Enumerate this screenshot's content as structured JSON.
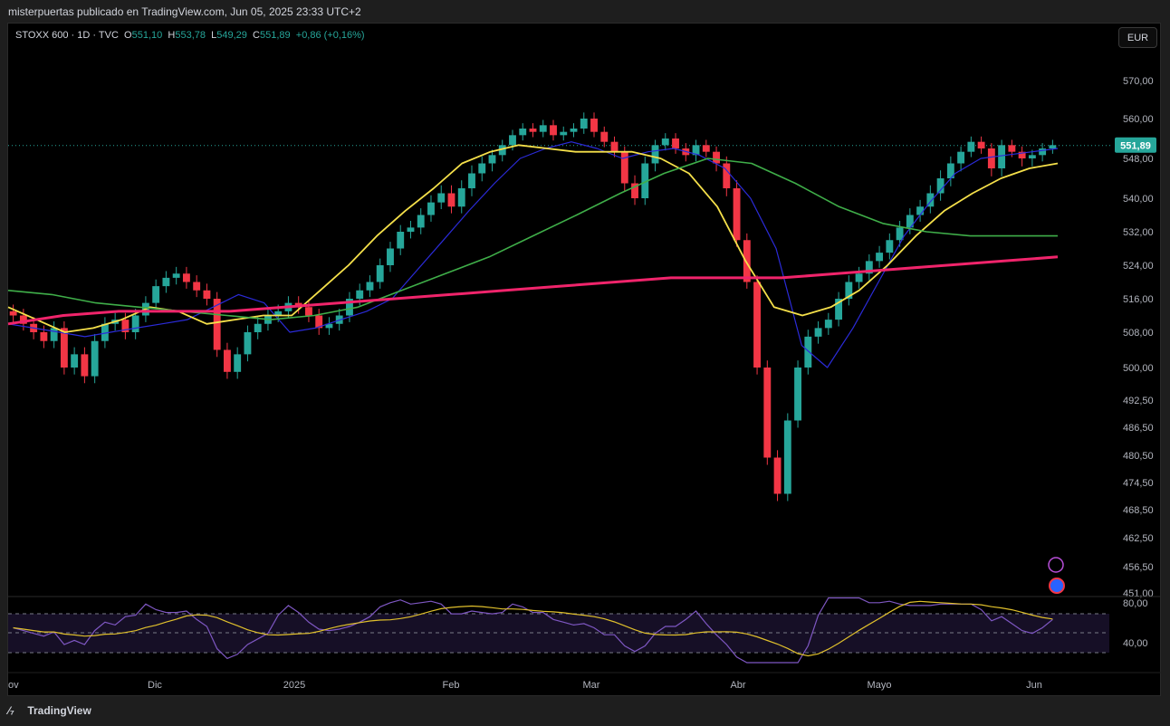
{
  "header": {
    "publish_line": "misterpuertas publicado en TradingView.com, Jun 05, 2025 23:33 UTC+2"
  },
  "legend": {
    "symbol": "STOXX 600 · 1D · TVC",
    "open_label": "O",
    "open": "551,10",
    "high_label": "H",
    "high": "553,78",
    "low_label": "L",
    "low": "549,29",
    "close_label": "C",
    "close": "551,89",
    "change": "+0,86 (+0,16%)"
  },
  "currency_button": "EUR",
  "price_tag": "551,89",
  "footer": {
    "brand": "TradingView"
  },
  "colors": {
    "up": "#26a69a",
    "down": "#f23645",
    "ma_fast": "#2b2bd9",
    "ma_mid": "#f5e04a",
    "ma_slow": "#3fae49",
    "ma_long": "#f0246b",
    "rsi": "#7e57c2",
    "rsi_ma": "#e0c02c"
  },
  "chart_data": {
    "type": "candlestick",
    "x_axis_labels": [
      "ov",
      "Dic",
      "2025",
      "Feb",
      "Mar",
      "Abr",
      "Mayo",
      "Jun"
    ],
    "y_axis_labels": [
      "570,00",
      "560,00",
      "548,00",
      "540,00",
      "532,00",
      "524,00",
      "516,00",
      "508,00",
      "500,00",
      "492,50",
      "486,50",
      "480,50",
      "474,50",
      "468,50",
      "462,50",
      "456,50",
      "451,00"
    ],
    "rsi_axis_labels": [
      "80,00",
      "40,00"
    ],
    "last_close": 551.89,
    "series": [
      {
        "name": "Candles",
        "ohlc_closes": [
          512,
          510,
          508,
          506,
          509,
          500,
          503,
          498,
          506,
          510,
          511,
          508,
          512,
          515,
          519,
          521,
          522,
          520,
          518,
          516,
          504,
          499,
          503,
          508,
          510,
          512,
          513,
          515,
          514,
          512,
          509,
          510,
          512,
          516,
          518,
          520,
          524,
          528,
          532,
          533,
          536,
          539,
          541,
          538,
          542,
          545,
          547,
          549,
          552,
          555,
          557,
          556,
          558,
          555,
          556,
          557,
          560,
          556,
          553,
          550,
          543,
          540,
          547,
          552,
          554,
          551,
          549,
          552,
          550,
          547,
          542,
          530,
          520,
          500,
          480,
          472,
          488,
          500,
          507,
          509,
          511,
          516,
          520,
          522,
          525,
          527,
          530,
          533,
          536,
          538,
          541,
          544,
          547,
          550,
          553,
          551,
          546,
          552,
          550,
          548,
          549,
          551,
          552
        ]
      },
      {
        "name": "MA fast",
        "values": [
          510,
          509,
          508,
          507,
          508,
          509,
          510,
          511,
          514,
          517,
          515,
          508,
          509,
          511,
          513,
          516,
          523,
          530,
          537,
          543,
          548,
          551,
          553,
          551,
          548,
          550,
          551,
          549,
          546,
          540,
          528,
          505,
          500,
          509,
          520,
          531,
          539,
          545,
          548,
          549,
          550,
          551
        ]
      },
      {
        "name": "MA mid",
        "values": [
          514,
          511,
          508,
          509,
          511,
          514,
          513,
          510,
          511,
          512,
          512,
          518,
          524,
          531,
          537,
          542,
          547,
          550,
          552,
          551,
          550,
          550,
          550,
          548,
          545,
          538,
          525,
          514,
          512,
          514,
          518,
          524,
          531,
          537,
          541,
          544,
          546,
          547
        ]
      },
      {
        "name": "MA slow",
        "values": [
          518,
          517,
          515,
          514,
          513,
          512,
          511,
          512,
          514,
          518,
          522,
          526,
          531,
          536,
          541,
          545,
          548,
          547,
          543,
          538,
          534,
          532,
          531,
          531,
          531
        ]
      },
      {
        "name": "MA long",
        "values": [
          510,
          512,
          513,
          513,
          513,
          514,
          515,
          516,
          517,
          518,
          519,
          520,
          521,
          521,
          521,
          522,
          523,
          524,
          525,
          526
        ]
      }
    ]
  }
}
